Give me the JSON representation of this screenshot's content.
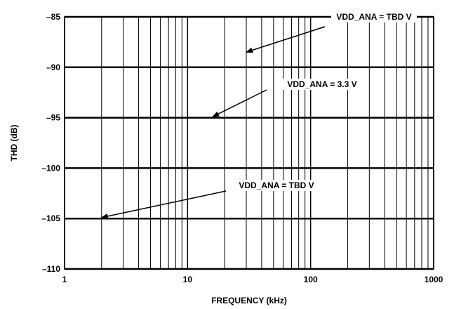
{
  "chart_data": {
    "type": "line",
    "xscale": "log",
    "xlim": [
      1,
      1000
    ],
    "ylim": [
      -110,
      -85
    ],
    "grid": true,
    "x_ticks": [
      1,
      10,
      100,
      1000
    ],
    "x_tick_labels": [
      "1",
      "10",
      "100",
      "1000"
    ],
    "y_ticks": [
      -85,
      -90,
      -95,
      -100,
      -105,
      -110
    ],
    "y_tick_labels": [
      "–85",
      "–90",
      "–95",
      "–100",
      "–105",
      "–110"
    ],
    "xlabel": "FREQUENCY (kHz)",
    "ylabel": "THD (dB)",
    "series": [],
    "annotations": [
      {
        "text": "VDD_ANA = TBD V",
        "arrow_to": [
          30,
          -88.5
        ]
      },
      {
        "text": "VDD_ANA = 3.3 V",
        "arrow_to": [
          16,
          -94.9
        ]
      },
      {
        "text": "VDD_ANA = TBD V",
        "arrow_to": [
          2,
          -104.9
        ]
      }
    ]
  }
}
